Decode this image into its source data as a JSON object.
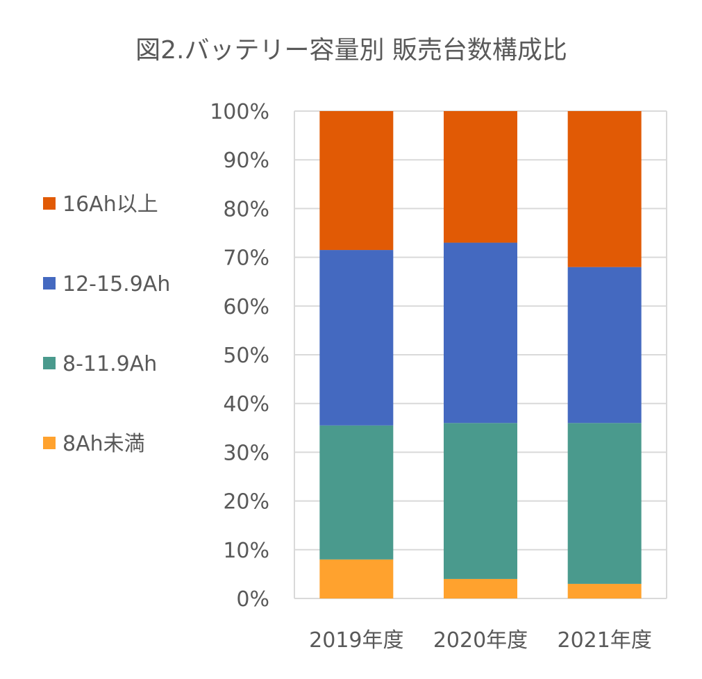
{
  "chart_data": {
    "type": "bar",
    "stacked": true,
    "title": "図2.バッテリー容量別 販売台数構成比",
    "xlabel": "",
    "ylabel": "",
    "ylim": [
      0,
      100
    ],
    "y_ticks": [
      0,
      10,
      20,
      30,
      40,
      50,
      60,
      70,
      80,
      90,
      100
    ],
    "y_tick_labels": [
      "0%",
      "10%",
      "20%",
      "30%",
      "40%",
      "50%",
      "60%",
      "70%",
      "80%",
      "90%",
      "100%"
    ],
    "grid": true,
    "legend_position": "left",
    "categories": [
      "2019年度",
      "2020年度",
      "2021年度"
    ],
    "series": [
      {
        "name": "8Ah未満",
        "color": "#ffa22e",
        "values": [
          8,
          4,
          3
        ]
      },
      {
        "name": "8-11.9Ah",
        "color": "#4a9a8d",
        "values": [
          27.5,
          32,
          33
        ]
      },
      {
        "name": "12-15.9Ah",
        "color": "#4469c0",
        "values": [
          36,
          37,
          32
        ]
      },
      {
        "name": "16Ah以上",
        "color": "#e15a05",
        "values": [
          28.5,
          27,
          32
        ]
      }
    ],
    "legend_order": [
      "16Ah以上",
      "12-15.9Ah",
      "8-11.9Ah",
      "8Ah未満"
    ]
  }
}
